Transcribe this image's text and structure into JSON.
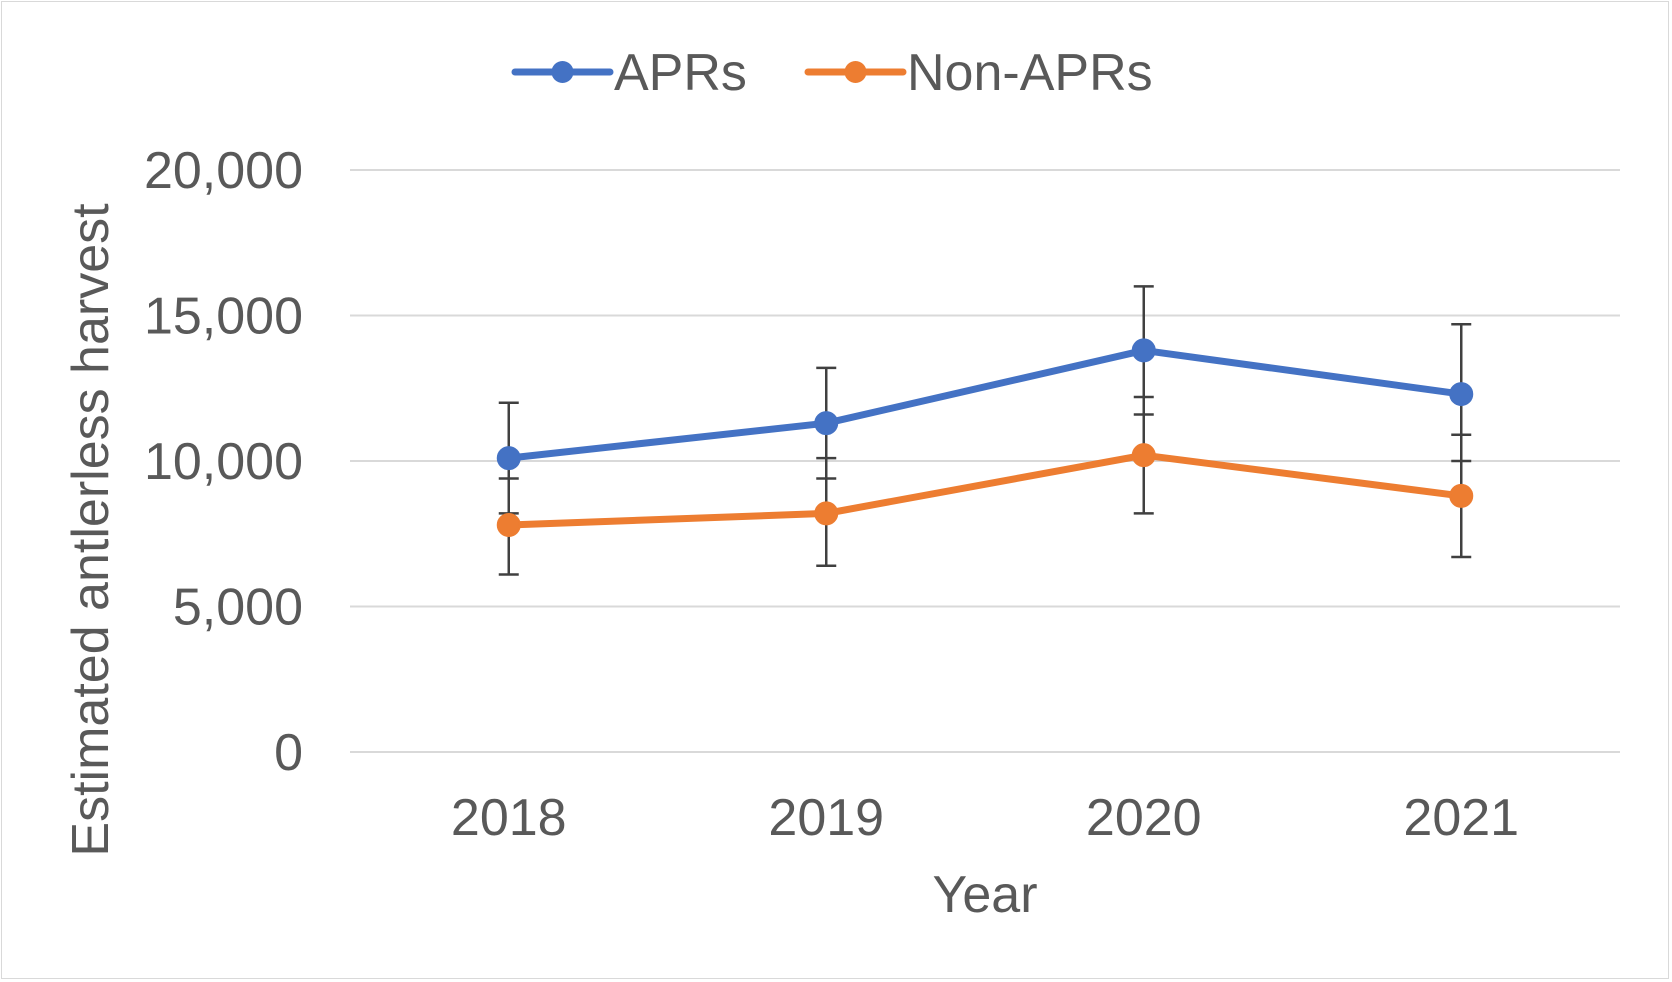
{
  "chart_data": {
    "type": "line",
    "title": "",
    "xlabel": "Year",
    "ylabel": "Estimated antlerless harvest",
    "categories": [
      "2018",
      "2019",
      "2020",
      "2021"
    ],
    "ylim": [
      0,
      20000
    ],
    "yticks": [
      0,
      5000,
      10000,
      15000,
      20000
    ],
    "ytick_labels": [
      "0",
      "5,000",
      "10,000",
      "15,000",
      "20,000"
    ],
    "grid": true,
    "legend_position": "top",
    "series": [
      {
        "name": "APRs",
        "color": "#4472c4",
        "values": [
          10100,
          11300,
          13800,
          12300
        ],
        "error_low": [
          8200,
          9400,
          11600,
          10000
        ],
        "error_high": [
          12000,
          13200,
          16000,
          14700
        ]
      },
      {
        "name": "Non-APRs",
        "color": "#ed7d31",
        "values": [
          7800,
          8200,
          10200,
          8800
        ],
        "error_low": [
          6100,
          6400,
          8200,
          6700
        ],
        "error_high": [
          9400,
          10100,
          12200,
          10900
        ]
      }
    ],
    "error_bar_color": "#404040",
    "gridline_color": "#d9d9d9"
  }
}
